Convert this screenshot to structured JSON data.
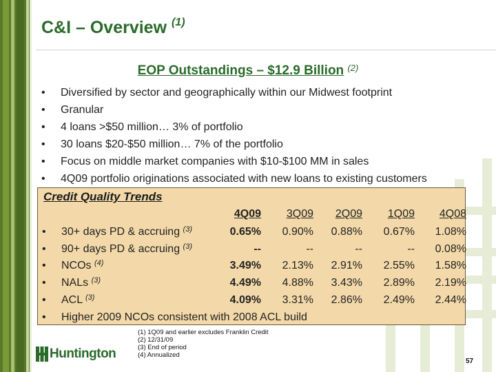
{
  "slide": {
    "title": "C&I – Overview",
    "title_note": "(1)",
    "subtitle": "EOP Outstandings – $12.9 Billion",
    "subtitle_note": "(2)",
    "bullets": [
      "Diversified by sector and geographically within our Midwest footprint",
      "Granular",
      "4 loans >$50 million… 3% of portfolio",
      "30 loans $20-$50 million… 7% of the portfolio",
      "Focus on middle market companies with $10-$100 MM in sales",
      "4Q09 portfolio originations associated with new loans to existing customers"
    ],
    "bullet_char": "•",
    "page_number": "57"
  },
  "credit_quality": {
    "title": "Credit Quality Trends",
    "periods": [
      "4Q09",
      "3Q09",
      "2Q09",
      "1Q09",
      "4Q08"
    ],
    "rows": [
      {
        "label": "30+ days PD & accruing",
        "note": "(3)",
        "values": [
          "0.65%",
          "0.90%",
          "0.88%",
          "0.67%",
          "1.08%"
        ]
      },
      {
        "label": "90+ days PD & accruing",
        "note": "(3)",
        "values": [
          "--",
          "--",
          "--",
          "--",
          "0.08%"
        ]
      },
      {
        "label": "NCOs",
        "note": "(4)",
        "values": [
          "3.49%",
          "2.13%",
          "2.91%",
          "2.55%",
          "1.58%"
        ]
      },
      {
        "label": "NALs",
        "note": "(3)",
        "values": [
          "4.49%",
          "4.88%",
          "3.43%",
          "2.89%",
          "2.19%"
        ]
      },
      {
        "label": "ACL",
        "note": "(3)",
        "values": [
          "4.09%",
          "3.31%",
          "2.86%",
          "2.49%",
          "2.44%"
        ]
      }
    ],
    "closing_bullet": "Higher 2009 NCOs consistent with 2008 ACL build"
  },
  "footnotes": [
    "(1)  1Q09 and earlier excludes Franklin Credit",
    "(2)  12/31/09",
    "(3)  End of period",
    "(4)  Annualized"
  ],
  "brand": {
    "logo_text": "Huntington",
    "logo_icon": "huntington-logo-icon",
    "accent_color": "#2a6a2a",
    "box_color": "#f3d9a9"
  }
}
